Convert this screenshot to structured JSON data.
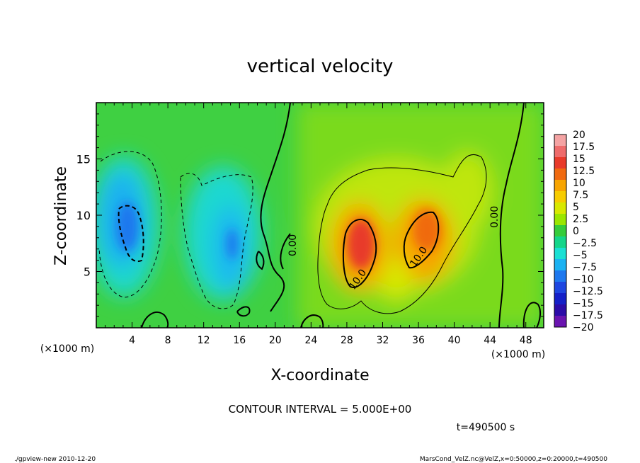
{
  "chart_data": {
    "type": "heatmap",
    "title": "vertical velocity",
    "xlabel": "X-coordinate",
    "ylabel": "Z-coordinate",
    "x_unit": "(×1000 m)",
    "y_unit": "(×1000 m)",
    "xlim": [
      0,
      50
    ],
    "ylim": [
      0,
      20
    ],
    "x_ticks": [
      4,
      8,
      12,
      16,
      20,
      24,
      28,
      32,
      36,
      40,
      44,
      48
    ],
    "y_ticks": [
      5,
      10,
      15
    ],
    "colorbar": {
      "labels": [
        "20",
        "17.5",
        "15",
        "12.5",
        "10",
        "7.5",
        "5",
        "2.5",
        "0",
        "−2.5",
        "−5",
        "−7.5",
        "−10",
        "−12.5",
        "−15",
        "−17.5",
        "−20"
      ],
      "colors": [
        "#f4a3a3",
        "#ee6b6b",
        "#e83a2a",
        "#f06a10",
        "#f7a400",
        "#f7cc00",
        "#d8e800",
        "#9ae600",
        "#35cc3b",
        "#14d68a",
        "#1ae0d4",
        "#1ab2f2",
        "#1e78ee",
        "#1e46e0",
        "#1520c8",
        "#2c0ca8",
        "#6a14b0"
      ]
    },
    "features": [
      {
        "name": "downdraft",
        "x": 3.6,
        "z": 9.0,
        "value": -11
      },
      {
        "name": "downdraft",
        "x": 14.5,
        "z": 7.5,
        "value": -7
      },
      {
        "name": "updraft",
        "x": 29.5,
        "z": 7.5,
        "value": 13
      },
      {
        "name": "updraft",
        "x": 37.0,
        "z": 9.0,
        "value": 12
      }
    ],
    "contour_labels": [
      "0.00",
      "0.00",
      "10.0",
      "10.0"
    ],
    "contour_interval_text": "CONTOUR INTERVAL = 5.000E+00"
  },
  "time_label": "t=490500 s",
  "footer": {
    "left": "./gpview-new  2010-12-20",
    "right": "MarsCond_VelZ.nc@VelZ,x=0:50000,z=0:20000,t=490500"
  }
}
